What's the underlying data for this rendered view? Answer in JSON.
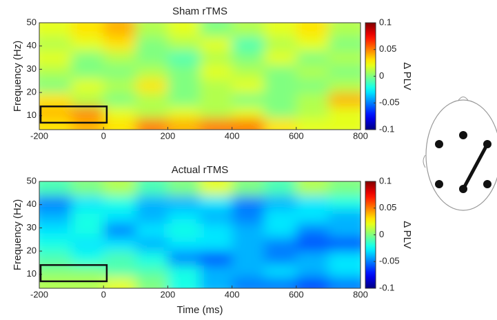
{
  "chart_data": [
    {
      "type": "heatmap",
      "title": "Sham rTMS",
      "ylabel": "Frequency (Hz)",
      "x_edges": [
        -200,
        -100,
        0,
        100,
        200,
        300,
        400,
        500,
        600,
        700,
        800
      ],
      "y_edges": [
        4,
        9,
        14,
        20,
        26,
        32,
        38,
        44,
        50
      ],
      "z": [
        [
          0.03,
          0.04,
          0.03,
          0.05,
          0.04,
          0.05,
          0.05,
          0.03,
          0.02,
          0.02
        ],
        [
          0.04,
          0.05,
          0.02,
          0.01,
          0.02,
          0.01,
          0.02,
          0.0,
          0.01,
          0.02
        ],
        [
          0.03,
          0.01,
          0.0,
          0.01,
          0.0,
          0.01,
          0.0,
          0.0,
          0.01,
          0.04
        ],
        [
          0.0,
          0.02,
          0.01,
          0.03,
          0.0,
          0.01,
          0.02,
          0.0,
          0.0,
          0.01
        ],
        [
          0.01,
          0.0,
          0.0,
          0.01,
          0.0,
          0.02,
          0.01,
          0.0,
          0.01,
          0.0
        ],
        [
          0.02,
          0.0,
          0.01,
          0.0,
          -0.01,
          0.01,
          0.0,
          0.02,
          0.0,
          0.01
        ],
        [
          0.01,
          0.02,
          0.03,
          0.0,
          0.01,
          0.02,
          -0.01,
          0.01,
          0.02,
          0.0
        ],
        [
          0.02,
          0.03,
          0.04,
          0.01,
          0.02,
          0.0,
          0.01,
          0.02,
          0.03,
          0.01
        ]
      ],
      "xlim": [
        -200,
        800
      ],
      "xticks": [
        -200,
        0,
        200,
        400,
        600,
        800
      ],
      "ylim": [
        4,
        50
      ],
      "yticks": [
        10,
        20,
        30,
        40,
        50
      ],
      "colormap": "jet",
      "clim": [
        -0.1,
        0.1
      ],
      "cticks": [
        -0.1,
        -0.05,
        0,
        0.05,
        0.1
      ],
      "colorbar_label": "Δ PLV",
      "box": {
        "x": [
          -200,
          10
        ],
        "y": [
          7,
          14
        ]
      }
    },
    {
      "type": "heatmap",
      "title": "Actual rTMS",
      "ylabel": "Frequency (Hz)",
      "xlabel": "Time (ms)",
      "x_edges": [
        -200,
        -100,
        0,
        100,
        200,
        300,
        400,
        500,
        600,
        700,
        800
      ],
      "y_edges": [
        4,
        9,
        14,
        20,
        26,
        32,
        38,
        44,
        50
      ],
      "z": [
        [
          0.01,
          0.01,
          0.02,
          0.0,
          -0.02,
          -0.04,
          -0.05,
          -0.05,
          -0.06,
          -0.05
        ],
        [
          0.0,
          0.0,
          -0.01,
          -0.01,
          -0.02,
          -0.04,
          -0.04,
          -0.03,
          -0.04,
          -0.03
        ],
        [
          -0.01,
          -0.02,
          -0.01,
          -0.02,
          -0.05,
          -0.06,
          -0.04,
          -0.05,
          -0.04,
          -0.03
        ],
        [
          -0.02,
          -0.03,
          -0.03,
          -0.04,
          -0.03,
          -0.03,
          -0.04,
          -0.05,
          -0.06,
          -0.06
        ],
        [
          -0.03,
          -0.02,
          -0.05,
          -0.03,
          -0.02,
          -0.03,
          -0.04,
          -0.03,
          -0.05,
          -0.04
        ],
        [
          -0.04,
          -0.02,
          -0.03,
          -0.04,
          -0.03,
          -0.04,
          -0.05,
          -0.03,
          -0.03,
          -0.04
        ],
        [
          -0.05,
          -0.03,
          -0.02,
          -0.04,
          -0.04,
          -0.03,
          -0.05,
          -0.04,
          -0.03,
          -0.02
        ],
        [
          -0.01,
          0.0,
          0.01,
          -0.01,
          0.0,
          0.02,
          0.0,
          -0.01,
          0.01,
          0.0
        ]
      ],
      "xlim": [
        -200,
        800
      ],
      "xticks": [
        -200,
        0,
        200,
        400,
        600,
        800
      ],
      "ylim": [
        4,
        50
      ],
      "yticks": [
        10,
        20,
        30,
        40,
        50
      ],
      "colormap": "jet",
      "clim": [
        -0.1,
        0.1
      ],
      "cticks": [
        -0.1,
        -0.05,
        0,
        0.05,
        0.1
      ],
      "colorbar_label": "Δ PLV",
      "box": {
        "x": [
          -200,
          10
        ],
        "y": [
          7,
          14
        ]
      }
    }
  ]
}
